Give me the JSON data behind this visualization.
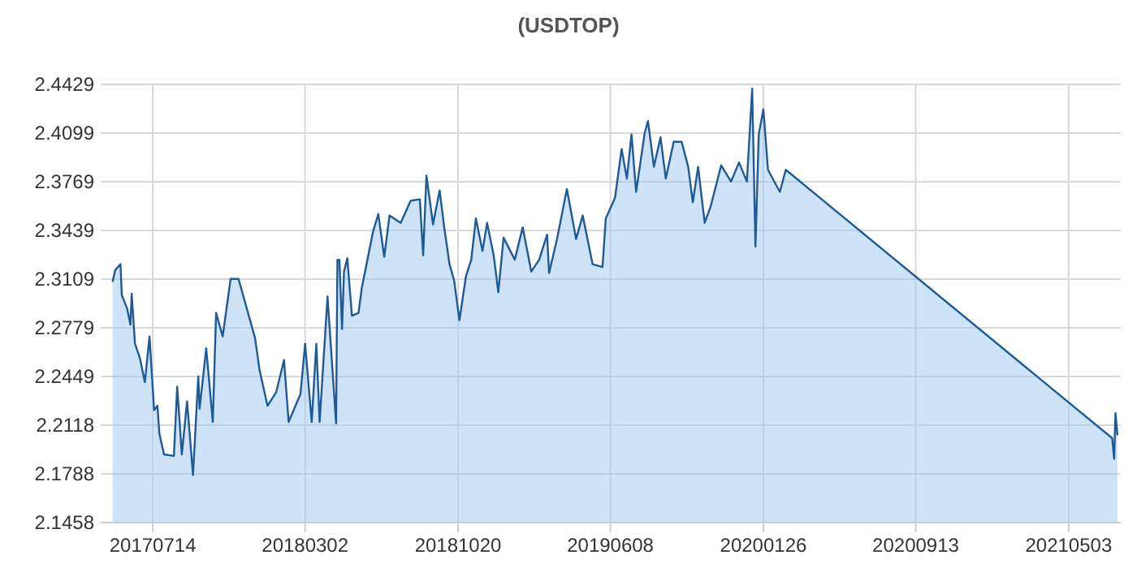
{
  "chart_data": {
    "type": "area",
    "title": "(USDTOP)",
    "x": [
      "2017-05-14",
      "2017-05-18",
      "2017-05-26",
      "2017-05-28",
      "2017-06-05",
      "2017-06-10",
      "2017-06-12",
      "2017-06-17",
      "2017-06-24",
      "2017-07-02",
      "2017-07-09",
      "2017-07-16",
      "2017-07-21",
      "2017-07-24",
      "2017-07-31",
      "2017-08-15",
      "2017-08-20",
      "2017-08-27",
      "2017-09-04",
      "2017-09-13",
      "2017-09-21",
      "2017-09-23",
      "2017-10-03",
      "2017-10-13",
      "2017-10-18",
      "2017-10-28",
      "2017-11-09",
      "2017-11-21",
      "2017-12-16",
      "2017-12-23",
      "2018-01-04",
      "2018-01-17",
      "2018-01-29",
      "2018-02-05",
      "2018-02-23",
      "2018-03-02",
      "2018-03-12",
      "2018-03-19",
      "2018-03-24",
      "2018-04-05",
      "2018-04-18",
      "2018-04-20",
      "2018-04-23",
      "2018-04-27",
      "2018-04-30",
      "2018-05-05",
      "2018-05-12",
      "2018-05-22",
      "2018-05-27",
      "2018-06-13",
      "2018-06-21",
      "2018-06-30",
      "2018-07-08",
      "2018-07-25",
      "2018-08-09",
      "2018-08-23",
      "2018-08-28",
      "2018-09-02",
      "2018-09-12",
      "2018-09-22",
      "2018-09-29",
      "2018-10-07",
      "2018-10-14",
      "2018-10-22",
      "2018-11-01",
      "2018-11-09",
      "2018-11-16",
      "2018-11-26",
      "2018-12-03",
      "2018-12-13",
      "2018-12-20",
      "2018-12-28",
      "2019-01-14",
      "2019-01-26",
      "2019-02-08",
      "2019-02-20",
      "2019-03-04",
      "2019-03-07",
      "2019-03-19",
      "2019-04-03",
      "2019-04-17",
      "2019-04-27",
      "2019-05-12",
      "2019-05-27",
      "2019-06-01",
      "2019-06-15",
      "2019-06-25",
      "2019-07-03",
      "2019-07-10",
      "2019-07-17",
      "2019-07-30",
      "2019-08-04",
      "2019-08-13",
      "2019-08-23",
      "2019-08-31",
      "2019-09-12",
      "2019-09-24",
      "2019-10-04",
      "2019-10-11",
      "2019-10-19",
      "2019-10-29",
      "2019-11-07",
      "2019-11-23",
      "2019-12-08",
      "2019-12-20",
      "2020-01-01",
      "2020-01-09",
      "2020-01-14",
      "2020-01-19",
      "2020-01-26",
      "2020-02-02",
      "2020-02-20",
      "2020-02-29",
      "2021-07-08",
      "2021-07-11",
      "2021-07-13",
      "2021-07-16"
    ],
    "series": [
      {
        "color": "#1f5a96",
        "values": [
          2.309,
          2.317,
          2.321,
          2.3,
          2.291,
          2.28,
          2.301,
          2.267,
          2.258,
          2.241,
          2.272,
          2.222,
          2.225,
          2.206,
          2.192,
          2.191,
          2.238,
          2.192,
          2.228,
          2.178,
          2.245,
          2.223,
          2.264,
          2.214,
          2.288,
          2.272,
          2.311,
          2.311,
          2.271,
          2.249,
          2.225,
          2.234,
          2.256,
          2.214,
          2.233,
          2.267,
          2.214,
          2.267,
          2.214,
          2.299,
          2.213,
          2.324,
          2.324,
          2.277,
          2.316,
          2.325,
          2.286,
          2.288,
          2.305,
          2.343,
          2.355,
          2.326,
          2.354,
          2.349,
          2.364,
          2.365,
          2.327,
          2.381,
          2.348,
          2.371,
          2.346,
          2.321,
          2.31,
          2.283,
          2.313,
          2.324,
          2.352,
          2.33,
          2.349,
          2.327,
          2.302,
          2.339,
          2.324,
          2.346,
          2.316,
          2.324,
          2.341,
          2.315,
          2.338,
          2.372,
          2.338,
          2.354,
          2.321,
          2.319,
          2.352,
          2.366,
          2.399,
          2.379,
          2.409,
          2.37,
          2.41,
          2.418,
          2.387,
          2.407,
          2.379,
          2.404,
          2.404,
          2.387,
          2.363,
          2.387,
          2.349,
          2.36,
          2.388,
          2.377,
          2.39,
          2.377,
          2.44,
          2.333,
          2.409,
          2.426,
          2.385,
          2.37,
          2.385,
          2.203,
          2.189,
          2.22,
          2.205
        ]
      }
    ],
    "xlim": [
      "2017-04-26",
      "2021-07-21"
    ],
    "xticks": [
      {
        "value": "2017-07-14",
        "label": "20170714"
      },
      {
        "value": "2018-03-02",
        "label": "20180302"
      },
      {
        "value": "2018-10-20",
        "label": "20181020"
      },
      {
        "value": "2019-06-08",
        "label": "20190608"
      },
      {
        "value": "2020-01-26",
        "label": "20200126"
      },
      {
        "value": "2020-09-13",
        "label": "20200913"
      },
      {
        "value": "2021-05-03",
        "label": "20210503"
      }
    ],
    "ylim": [
      2.1458,
      2.4429
    ],
    "yticks": [
      2.1458,
      2.1788,
      2.2118,
      2.2449,
      2.2779,
      2.3109,
      2.3439,
      2.3769,
      2.4099,
      2.4429
    ],
    "grid": true
  }
}
